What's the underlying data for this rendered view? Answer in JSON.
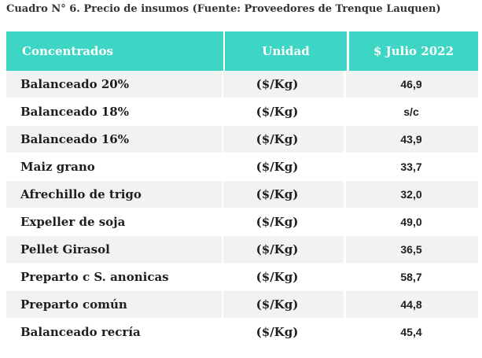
{
  "caption": "Cuadro N° 6. Precio de insumos (Fuente: Proveedores de Trenque Lauquen)",
  "table": {
    "headers": [
      "Concentrados",
      "Unidad",
      "$ Julio 2022"
    ],
    "rows": [
      {
        "name": "Balanceado 20%",
        "unit": "($/Kg)",
        "price": "46,9"
      },
      {
        "name": "Balanceado 18%",
        "unit": "($/Kg)",
        "price": "s/c"
      },
      {
        "name": "Balanceado 16%",
        "unit": "($/Kg)",
        "price": "43,9"
      },
      {
        "name": "Maiz grano",
        "unit": "($/Kg)",
        "price": "33,7"
      },
      {
        "name": "Afrechillo de trigo",
        "unit": "($/Kg)",
        "price": "32,0"
      },
      {
        "name": "Expeller de soja",
        "unit": "($/Kg)",
        "price": "49,0"
      },
      {
        "name": "Pellet Girasol",
        "unit": "($/Kg)",
        "price": "36,5"
      },
      {
        "name": "Preparto c S. anonicas",
        "unit": "($/Kg)",
        "price": "58,7"
      },
      {
        "name": "Preparto común",
        "unit": "($/Kg)",
        "price": "44,8"
      },
      {
        "name": "Balanceado recría",
        "unit": "($/Kg)",
        "price": "45,4"
      }
    ]
  },
  "colors": {
    "header_bg": "#3dd5c3",
    "header_text": "#ffffff",
    "row_shaded": "#f2f2f2",
    "row_plain": "#ffffff"
  }
}
